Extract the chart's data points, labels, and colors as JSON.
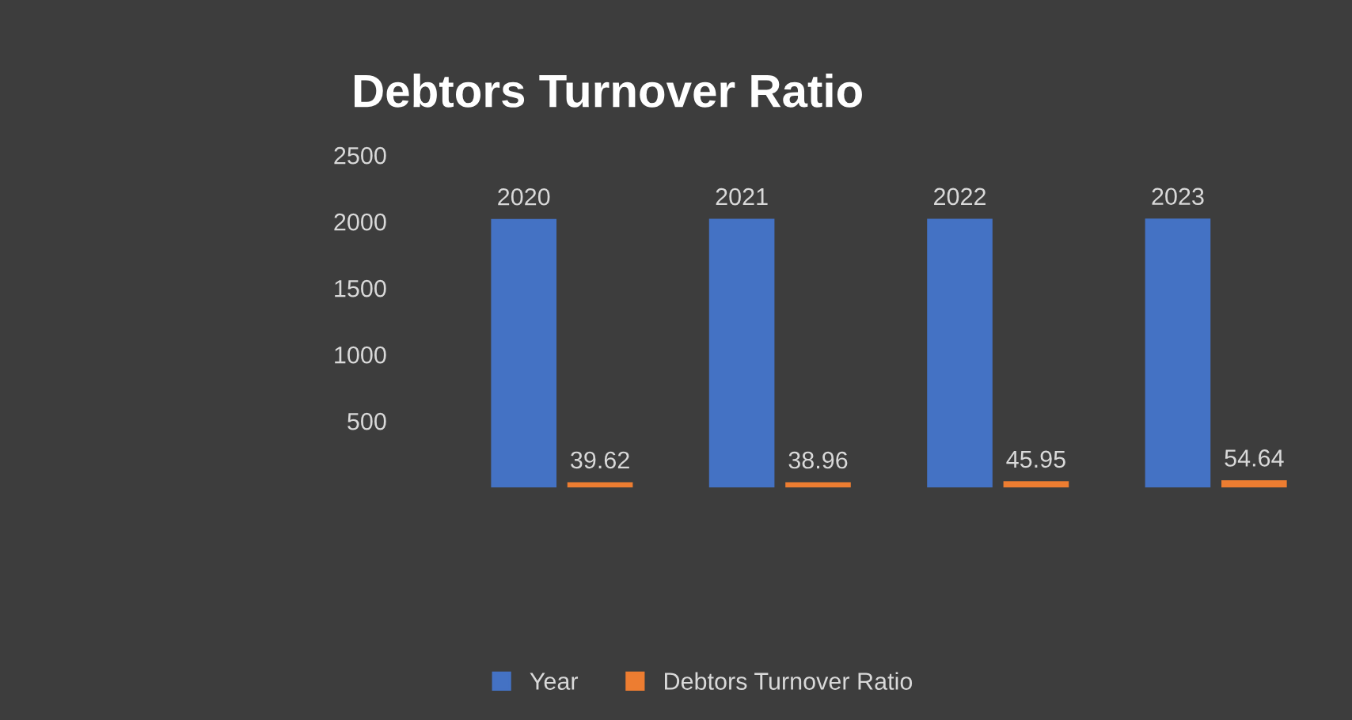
{
  "chart_data": {
    "type": "bar",
    "title": "Debtors Turnover Ratio",
    "categories": [
      null,
      null,
      null,
      null
    ],
    "series": [
      {
        "name": "Year",
        "color": "#4472c4",
        "values": [
          2020,
          2021,
          2022,
          2023
        ]
      },
      {
        "name": "Debtors Turnover Ratio",
        "color": "#ed7d31",
        "values": [
          39.62,
          38.96,
          45.95,
          54.64
        ]
      }
    ],
    "ylim": [
      0,
      2500
    ],
    "yticks": [
      500,
      1000,
      1500,
      2000,
      2500
    ],
    "data_labels": true,
    "grid": false,
    "legend": "bottom"
  }
}
